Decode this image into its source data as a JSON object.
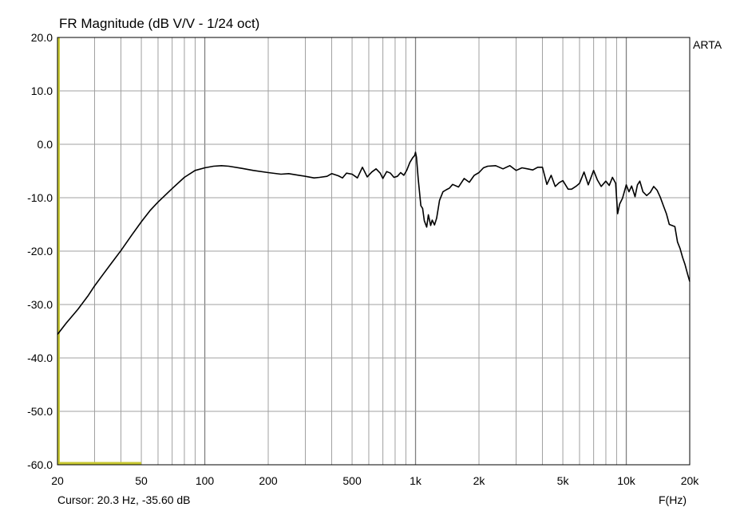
{
  "window": {
    "watermark": "ARTA"
  },
  "status": {
    "cursor_readout": "Cursor: 20.3 Hz, -35.60 dB",
    "x_unit_label": "F(Hz)"
  },
  "colors": {
    "curve": "#000000",
    "grid": "#a0a0a0",
    "cursor": "#c8c832",
    "frame": "#000000"
  },
  "chart_data": {
    "type": "line",
    "title": "FR Magnitude (dB V/V - 1/24 oct)",
    "xlabel": "F(Hz)",
    "ylabel": "",
    "x_scale": "log",
    "xlim": [
      20,
      20000
    ],
    "ylim": [
      -60,
      20
    ],
    "grid": true,
    "x_tick_values": [
      20,
      50,
      100,
      200,
      500,
      1000,
      2000,
      5000,
      10000,
      20000
    ],
    "x_tick_labels": [
      "20",
      "50",
      "100",
      "200",
      "500",
      "1k",
      "2k",
      "5k",
      "10k",
      "20k"
    ],
    "y_tick_values": [
      20,
      10,
      0,
      -10,
      -20,
      -30,
      -40,
      -50,
      -60
    ],
    "y_tick_labels": [
      "20.0",
      "10.0",
      "0.0",
      "-10.0",
      "-20.0",
      "-30.0",
      "-40.0",
      "-50.0",
      "-60.0"
    ],
    "cursor": {
      "x": 20.3,
      "y": -35.6
    },
    "series": [
      {
        "x": [
          20,
          22,
          25,
          28,
          30,
          33,
          36,
          40,
          45,
          50,
          55,
          60,
          70,
          80,
          90,
          100,
          110,
          120,
          130,
          150,
          170,
          200,
          230,
          250,
          280,
          300,
          330,
          350,
          380,
          400,
          430,
          450,
          470,
          500,
          530,
          560,
          590,
          620,
          650,
          680,
          700,
          730,
          760,
          790,
          820,
          850,
          880,
          910,
          940,
          970,
          990,
          1000,
          1010,
          1030,
          1060,
          1080,
          1100,
          1130,
          1150,
          1180,
          1200,
          1230,
          1260,
          1300,
          1350,
          1400,
          1450,
          1500,
          1600,
          1700,
          1800,
          1900,
          2000,
          2100,
          2200,
          2400,
          2600,
          2800,
          3000,
          3200,
          3400,
          3600,
          3800,
          4000,
          4200,
          4400,
          4600,
          4800,
          5000,
          5300,
          5500,
          5800,
          6000,
          6300,
          6600,
          7000,
          7300,
          7600,
          8000,
          8300,
          8600,
          8900,
          9100,
          9300,
          9600,
          10000,
          10300,
          10600,
          11000,
          11300,
          11600,
          12000,
          12500,
          13000,
          13500,
          14000,
          14500,
          15000,
          15500,
          16000,
          17000,
          17500,
          18000,
          18500,
          19000,
          19500,
          20000
        ],
        "y": [
          -35.6,
          -33.5,
          -30.9,
          -28.3,
          -26.5,
          -24.3,
          -22.3,
          -19.9,
          -17.0,
          -14.5,
          -12.4,
          -10.8,
          -8.3,
          -6.2,
          -4.9,
          -4.4,
          -4.1,
          -4.0,
          -4.1,
          -4.5,
          -4.9,
          -5.3,
          -5.6,
          -5.5,
          -5.8,
          -6.0,
          -6.3,
          -6.2,
          -6.0,
          -5.5,
          -5.9,
          -6.3,
          -5.4,
          -5.6,
          -6.3,
          -4.3,
          -6.1,
          -5.2,
          -4.6,
          -5.4,
          -6.4,
          -5.1,
          -5.4,
          -6.2,
          -6.0,
          -5.3,
          -5.8,
          -4.8,
          -3.4,
          -2.5,
          -2.1,
          -1.5,
          -2.4,
          -6.5,
          -11.5,
          -12.0,
          -14.3,
          -15.5,
          -13.2,
          -15.2,
          -14.2,
          -15.1,
          -13.8,
          -10.5,
          -8.9,
          -8.5,
          -8.2,
          -7.5,
          -8.0,
          -6.4,
          -7.1,
          -5.8,
          -5.3,
          -4.4,
          -4.1,
          -4.0,
          -4.6,
          -4.0,
          -4.9,
          -4.4,
          -4.6,
          -4.8,
          -4.3,
          -4.3,
          -7.5,
          -5.8,
          -7.9,
          -7.2,
          -6.8,
          -8.4,
          -8.4,
          -7.8,
          -7.3,
          -5.2,
          -7.6,
          -4.9,
          -6.7,
          -7.9,
          -6.9,
          -7.7,
          -6.2,
          -7.3,
          -13.0,
          -11.2,
          -10.1,
          -7.6,
          -8.9,
          -7.8,
          -9.8,
          -7.6,
          -6.9,
          -8.9,
          -9.6,
          -9.0,
          -7.9,
          -8.6,
          -9.9,
          -11.5,
          -13.0,
          -15.0,
          -15.4,
          -18.3,
          -19.5,
          -21.2,
          -22.5,
          -24.2,
          -25.7
        ]
      }
    ]
  }
}
